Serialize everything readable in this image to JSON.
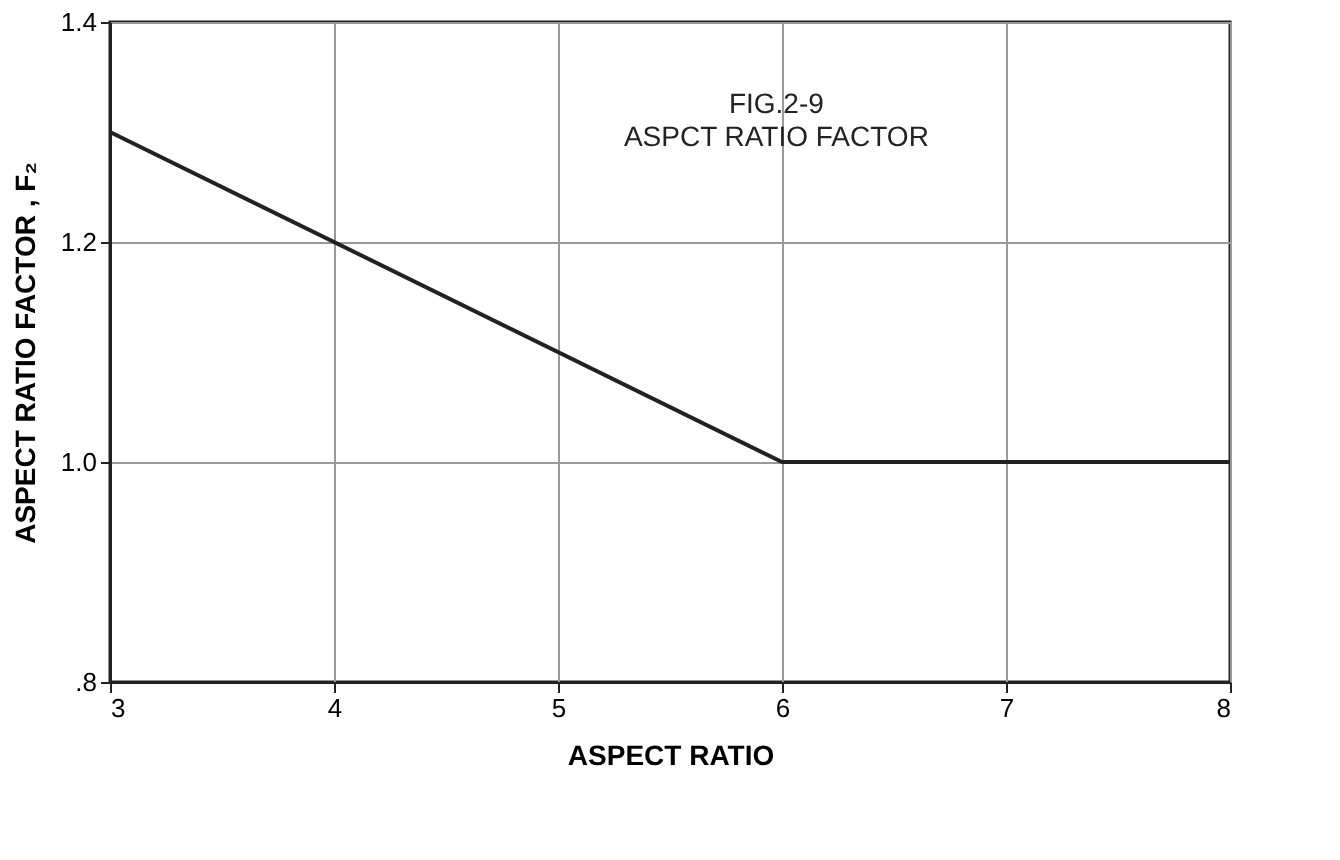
{
  "chart_data": {
    "type": "line",
    "title": "FIG.2-9",
    "subtitle": "ASPCT RATIO FACTOR",
    "xlabel": "ASPECT RATIO",
    "ylabel": "ASPECT RATIO FACTOR , F₂",
    "x": [
      3,
      6,
      8
    ],
    "series": [
      {
        "color": "#222222",
        "values": [
          1.3,
          1.0,
          1.0
        ]
      }
    ],
    "xlim": [
      3,
      8
    ],
    "xticks": [
      3,
      4,
      5,
      6,
      7,
      8
    ],
    "ylim": [
      0.8,
      1.4
    ],
    "yticks": [
      {
        "value": 0.8,
        "label": ".8"
      },
      {
        "value": 1.0,
        "label": "1.0"
      },
      1.2,
      1.4
    ],
    "grid": true,
    "marker": "none",
    "line_style": "solid"
  }
}
